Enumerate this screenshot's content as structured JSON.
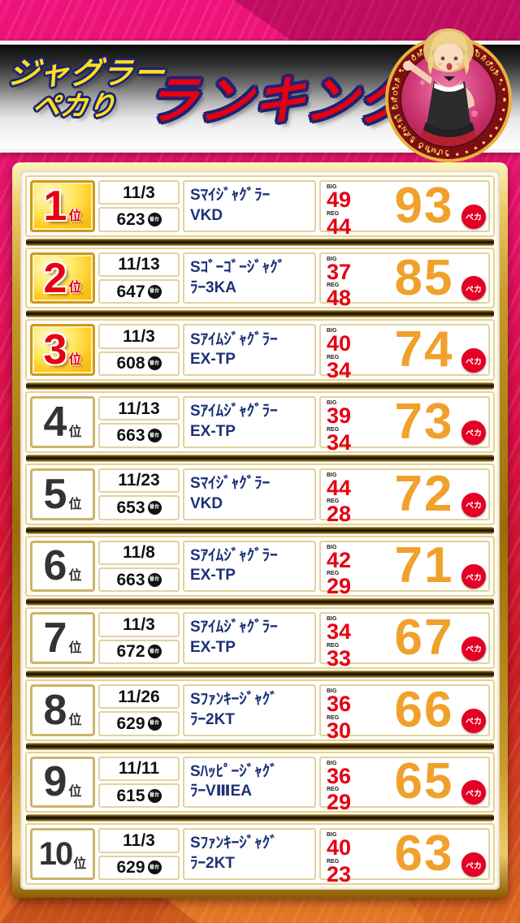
{
  "header": {
    "title_line1": "ジャグラー",
    "title_line2": "ペカり",
    "title_main": "ランキング",
    "badge_ring_text": "JUMBO SAN-EI GROUP ・ JUMBO SAN-EI GROUP ・"
  },
  "list": {
    "rank_suffix": "位",
    "unit_badge": "番台",
    "big_label": "BIG",
    "reg_label": "REG",
    "peka_label": "ペカ",
    "rows": [
      {
        "rank": "1",
        "date": "11/3",
        "unit": "623",
        "name_line1": "Sﾏｲｼﾞｬｸﾞﾗｰ",
        "name_line2": "VKD",
        "big": "49",
        "reg": "44",
        "total": "93"
      },
      {
        "rank": "2",
        "date": "11/13",
        "unit": "647",
        "name_line1": "Sｺﾞｰｺﾞｰｼﾞｬｸﾞ",
        "name_line2": "ﾗｰ3KA",
        "big": "37",
        "reg": "48",
        "total": "85"
      },
      {
        "rank": "3",
        "date": "11/3",
        "unit": "608",
        "name_line1": "Sｱｲﾑｼﾞｬｸﾞﾗｰ",
        "name_line2": "EX-TP",
        "big": "40",
        "reg": "34",
        "total": "74"
      },
      {
        "rank": "4",
        "date": "11/13",
        "unit": "663",
        "name_line1": "Sｱｲﾑｼﾞｬｸﾞﾗｰ",
        "name_line2": "EX-TP",
        "big": "39",
        "reg": "34",
        "total": "73"
      },
      {
        "rank": "5",
        "date": "11/23",
        "unit": "653",
        "name_line1": "Sﾏｲｼﾞｬｸﾞﾗｰ",
        "name_line2": "VKD",
        "big": "44",
        "reg": "28",
        "total": "72"
      },
      {
        "rank": "6",
        "date": "11/8",
        "unit": "663",
        "name_line1": "Sｱｲﾑｼﾞｬｸﾞﾗｰ",
        "name_line2": "EX-TP",
        "big": "42",
        "reg": "29",
        "total": "71"
      },
      {
        "rank": "7",
        "date": "11/3",
        "unit": "672",
        "name_line1": "Sｱｲﾑｼﾞｬｸﾞﾗｰ",
        "name_line2": "EX-TP",
        "big": "34",
        "reg": "33",
        "total": "67"
      },
      {
        "rank": "8",
        "date": "11/26",
        "unit": "629",
        "name_line1": "Sﾌｧﾝｷｰｼﾞｬｸﾞ",
        "name_line2": "ﾗｰ2KT",
        "big": "36",
        "reg": "30",
        "total": "66"
      },
      {
        "rank": "9",
        "date": "11/11",
        "unit": "615",
        "name_line1": "Sﾊｯﾋﾟｰｼﾞｬｸﾞ",
        "name_line2": "ﾗｰVⅢEA",
        "big": "36",
        "reg": "29",
        "total": "65"
      },
      {
        "rank": "10",
        "date": "11/3",
        "unit": "629",
        "name_line1": "Sﾌｧﾝｷｰｼﾞｬｸﾞ",
        "name_line2": "ﾗｰ2KT",
        "big": "40",
        "reg": "23",
        "total": "63"
      }
    ]
  },
  "colors": {
    "background_magenta": "#ee137b",
    "background_red": "#ce1a22",
    "title_yellow": "#ffe11a",
    "title_red": "#e50012",
    "outline_navy": "#1d2374",
    "gold_frame": "#c89a2a",
    "stat_red": "#e60012",
    "total_orange": "#f0a12b",
    "name_navy": "#1c3177",
    "peka_red": "#e50023"
  }
}
